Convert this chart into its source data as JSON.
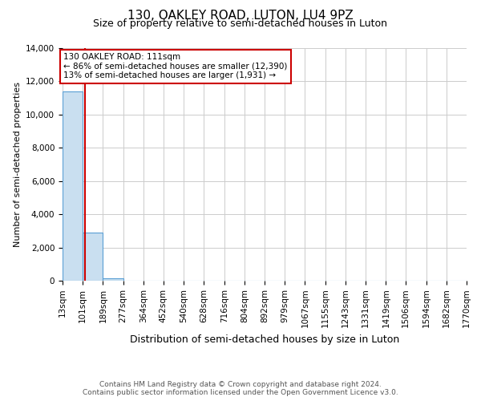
{
  "title": "130, OAKLEY ROAD, LUTON, LU4 9PZ",
  "subtitle": "Size of property relative to semi-detached houses in Luton",
  "xlabel": "Distribution of semi-detached houses by size in Luton",
  "ylabel": "Number of semi-detached properties",
  "property_size": 111,
  "property_label": "130 OAKLEY ROAD: 111sqm",
  "annotation_line1": "← 86% of semi-detached houses are smaller (12,390)",
  "annotation_line2": "13% of semi-detached houses are larger (1,931) →",
  "bin_edges": [
    13,
    101,
    189,
    277,
    364,
    452,
    540,
    628,
    716,
    804,
    892,
    979,
    1067,
    1155,
    1243,
    1331,
    1419,
    1506,
    1594,
    1682,
    1770
  ],
  "bin_labels": [
    "13sqm",
    "101sqm",
    "189sqm",
    "277sqm",
    "364sqm",
    "452sqm",
    "540sqm",
    "628sqm",
    "716sqm",
    "804sqm",
    "892sqm",
    "979sqm",
    "1067sqm",
    "1155sqm",
    "1243sqm",
    "1331sqm",
    "1419sqm",
    "1506sqm",
    "1594sqm",
    "1682sqm",
    "1770sqm"
  ],
  "bar_heights": [
    11400,
    2900,
    150,
    0,
    0,
    0,
    0,
    0,
    0,
    0,
    0,
    0,
    0,
    0,
    0,
    0,
    0,
    0,
    0,
    0
  ],
  "bar_color": "#c9dff0",
  "bar_edge_color": "#5a9fd4",
  "property_line_color": "#cc0000",
  "annotation_box_color": "#cc0000",
  "ylim": [
    0,
    14000
  ],
  "yticks": [
    0,
    2000,
    4000,
    6000,
    8000,
    10000,
    12000,
    14000
  ],
  "footer_line1": "Contains HM Land Registry data © Crown copyright and database right 2024.",
  "footer_line2": "Contains public sector information licensed under the Open Government Licence v3.0.",
  "background_color": "#ffffff",
  "grid_color": "#cccccc",
  "title_fontsize": 11,
  "subtitle_fontsize": 9,
  "xlabel_fontsize": 9,
  "ylabel_fontsize": 8,
  "tick_fontsize": 7.5,
  "annotation_fontsize": 7.5,
  "footer_fontsize": 6.5
}
